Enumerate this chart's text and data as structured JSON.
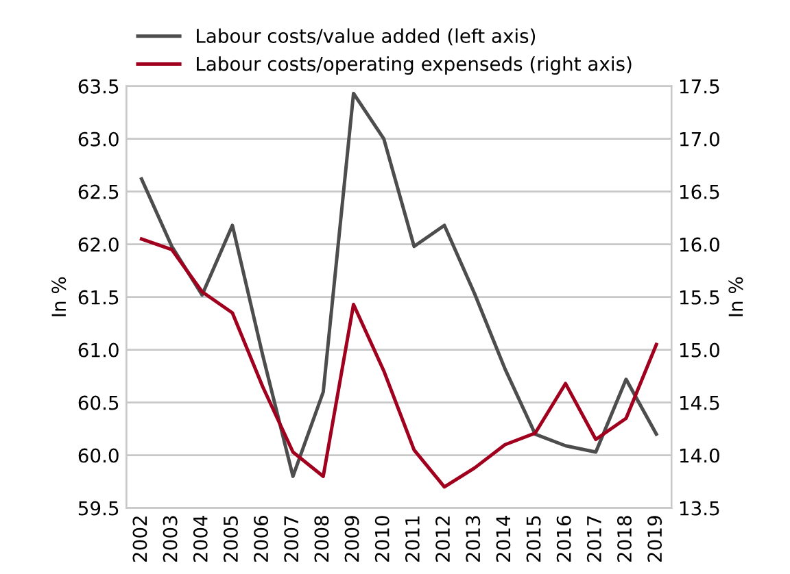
{
  "chart_data": {
    "type": "line",
    "ylabel": "In %",
    "y2label": "In %",
    "categories": [
      "2002",
      "2003",
      "2004",
      "2005",
      "2006",
      "2007",
      "2008",
      "2009",
      "2010",
      "2011",
      "2012",
      "2013",
      "2014",
      "2015",
      "2016",
      "2017",
      "2018",
      "2019"
    ],
    "series": [
      {
        "name": "Labour costs/value added (left axis)",
        "color": "#4d4d4d",
        "values": [
          62.62,
          61.98,
          61.52,
          62.18,
          60.95,
          59.8,
          60.6,
          63.43,
          63.0,
          61.98,
          62.18,
          61.53,
          60.82,
          60.2,
          60.09,
          60.03,
          60.72,
          60.2
        ]
      },
      {
        "name": "Labour costs/operating expenseds (right axis)",
        "color": "#a0001e",
        "axis": "y2",
        "values": [
          16.05,
          15.95,
          15.55,
          15.35,
          14.65,
          14.03,
          13.8,
          15.43,
          14.8,
          14.05,
          13.7,
          13.88,
          14.1,
          14.21,
          14.68,
          14.15,
          14.35,
          15.05
        ]
      }
    ],
    "ylim": [
      59.5,
      63.5
    ],
    "yticks": [
      {
        "value": 59.5,
        "label": "59.5"
      },
      {
        "value": 60,
        "label": "60.0"
      },
      {
        "value": 60.5,
        "label": "60.5"
      },
      {
        "value": 61,
        "label": "61.0"
      },
      {
        "value": 61.5,
        "label": "61.5"
      },
      {
        "value": 62,
        "label": "62.0"
      },
      {
        "value": 62.5,
        "label": "62.5"
      },
      {
        "value": 63,
        "label": "63.0"
      },
      {
        "value": 63.5,
        "label": "63.5"
      }
    ],
    "y2lim": [
      13.5,
      17.5
    ],
    "y2ticks": [
      {
        "value": 13.5,
        "label": "13.5"
      },
      {
        "value": 14,
        "label": "14.0"
      },
      {
        "value": 14.5,
        "label": "14.5"
      },
      {
        "value": 15,
        "label": "15.0"
      },
      {
        "value": 15.5,
        "label": "15.5"
      },
      {
        "value": 16,
        "label": "16.0"
      },
      {
        "value": 16.5,
        "label": "16.5"
      },
      {
        "value": 17,
        "label": "17.0"
      },
      {
        "value": 17.5,
        "label": "17.5"
      }
    ],
    "grid": "y",
    "legend": "top left",
    "marker": "none",
    "line_style": "solid"
  }
}
